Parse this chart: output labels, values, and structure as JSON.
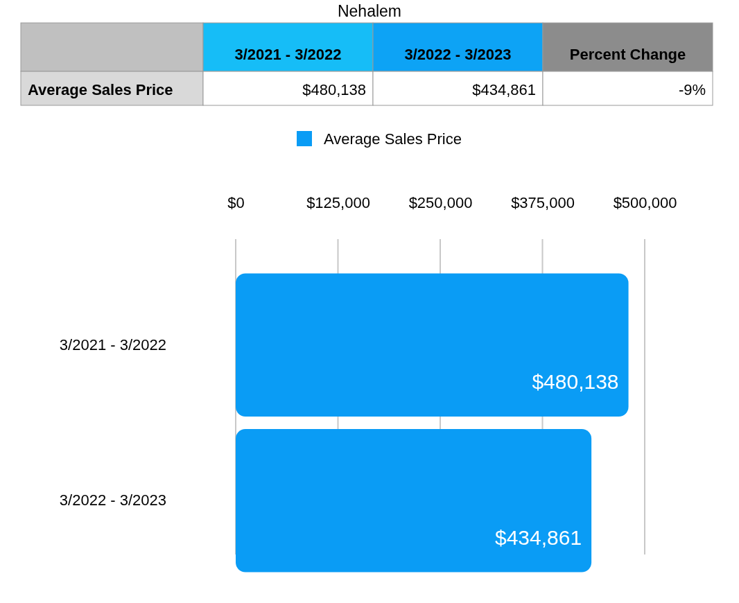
{
  "chart_data": {
    "type": "bar",
    "orientation": "horizontal",
    "title": "Nehalem",
    "categories": [
      "3/2021 - 3/2022",
      "3/2022 - 3/2023"
    ],
    "series": [
      {
        "name": "Average Sales Price",
        "color": "#0a9cf5",
        "values": [
          480138,
          434861
        ],
        "value_labels": [
          "$480,138",
          "$434,861"
        ]
      }
    ],
    "xlim": [
      0,
      500000
    ],
    "xticks": [
      {
        "value": 0,
        "label": "$0"
      },
      {
        "value": 125000,
        "label": "$125,000"
      },
      {
        "value": 250000,
        "label": "$250,000"
      },
      {
        "value": 375000,
        "label": "$375,000"
      },
      {
        "value": 500000,
        "label": "$500,000"
      }
    ],
    "grid": "x",
    "legend": "top",
    "annotations": [
      "Percent Change",
      "-9%"
    ]
  }
}
